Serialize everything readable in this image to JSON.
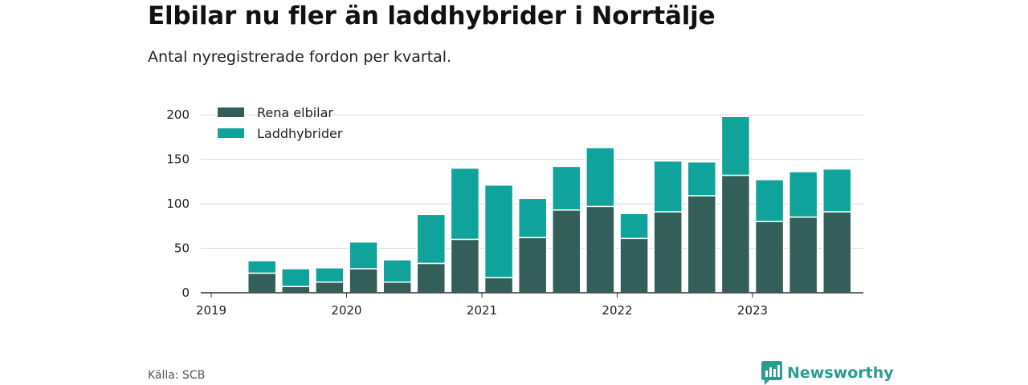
{
  "title": "Elbilar nu fler än laddhybrider i Norrtälje",
  "subtitle": "Antal nyregistrerade fordon per kvartal.",
  "source": "Källa: SCB",
  "brand": {
    "name": "Newsworthy",
    "icon": "newsworthy-logo-icon"
  },
  "colors": {
    "rena_elbilar": "#335e5a",
    "laddhybrider": "#0fa39b",
    "grid": "#d8d8d8",
    "axis": "#333333"
  },
  "chart_data": {
    "type": "bar",
    "stacked": true,
    "title": "Elbilar nu fler än laddhybrider i Norrtälje",
    "subtitle": "Antal nyregistrerade fordon per kvartal.",
    "xlabel": "",
    "ylabel": "",
    "ylim": [
      0,
      200
    ],
    "yticks": [
      0,
      50,
      100,
      150,
      200
    ],
    "xticks": [
      "2019",
      "2020",
      "2021",
      "2022",
      "2023"
    ],
    "categories": [
      "2019 Q2",
      "2019 Q3",
      "2019 Q4",
      "2020 Q1",
      "2020 Q2",
      "2020 Q3",
      "2020 Q4",
      "2021 Q1",
      "2021 Q2",
      "2021 Q3",
      "2021 Q4",
      "2022 Q1",
      "2022 Q2",
      "2022 Q3",
      "2022 Q4",
      "2023 Q1",
      "2023 Q2",
      "2023 Q3"
    ],
    "series": [
      {
        "name": "Rena elbilar",
        "values": [
          22,
          7,
          12,
          27,
          12,
          33,
          60,
          17,
          62,
          93,
          97,
          61,
          91,
          109,
          132,
          80,
          85,
          91
        ]
      },
      {
        "name": "Laddhybrider",
        "values": [
          14,
          20,
          16,
          30,
          25,
          55,
          80,
          104,
          44,
          49,
          66,
          28,
          57,
          38,
          66,
          47,
          51,
          48
        ]
      }
    ],
    "legend_position": "top-left",
    "grid": true
  }
}
